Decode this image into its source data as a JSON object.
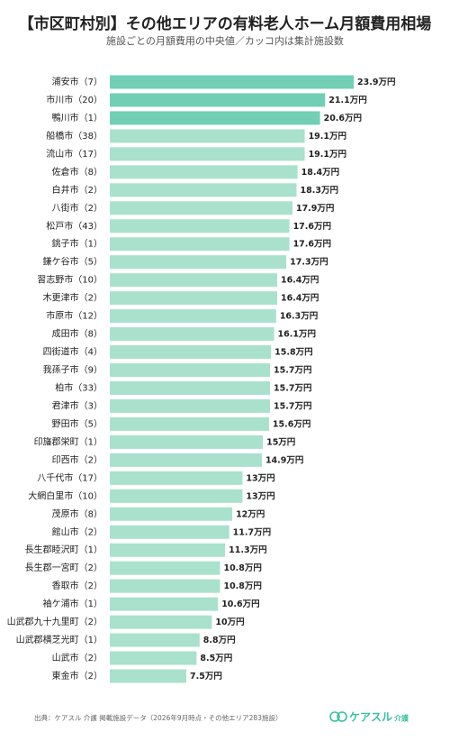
{
  "chart_data": {
    "type": "bar",
    "orientation": "horizontal",
    "title": "【市区町村別】その他エリアの有料老人ホーム月額費用相場",
    "subtitle": "施設ごとの月額費用の中央値／カッコ内は集計施設数",
    "categories": [
      "浦安市（7）",
      "市川市（20）",
      "鴨川市（1）",
      "船橋市（38）",
      "流山市（17）",
      "佐倉市（8）",
      "白井市（2）",
      "八街市（2）",
      "松戸市（43）",
      "銚子市（1）",
      "鎌ケ谷市（5）",
      "習志野市（10）",
      "木更津市（2）",
      "市原市（12）",
      "成田市（8）",
      "四街道市（4）",
      "我孫子市（9）",
      "柏市（33）",
      "君津市（3）",
      "野田市（5）",
      "印旛郡栄町（1）",
      "印西市（2）",
      "八千代市（17）",
      "大網白里市（10）",
      "茂原市（8）",
      "館山市（2）",
      "長生郡睦沢町（1）",
      "長生郡一宮町（2）",
      "香取市（2）",
      "袖ケ浦市（1）",
      "山武郡九十九里町（2）",
      "山武郡横芝光町（1）",
      "山武市（2）",
      "東金市（2）"
    ],
    "values": [
      23.9,
      21.1,
      20.6,
      19.1,
      19.1,
      18.4,
      18.3,
      17.9,
      17.6,
      17.6,
      17.3,
      16.4,
      16.4,
      16.3,
      16.1,
      15.8,
      15.7,
      15.7,
      15.7,
      15.6,
      15,
      14.9,
      13,
      13,
      12,
      11.7,
      11.3,
      10.8,
      10.8,
      10.6,
      10,
      8.8,
      8.5,
      7.5
    ],
    "value_labels": [
      "23.9万円",
      "21.1万円",
      "20.6万円",
      "19.1万円",
      "19.1万円",
      "18.4万円",
      "18.3万円",
      "17.9万円",
      "17.6万円",
      "17.6万円",
      "17.3万円",
      "16.4万円",
      "16.4万円",
      "16.3万円",
      "16.1万円",
      "15.8万円",
      "15.7万円",
      "15.7万円",
      "15.7万円",
      "15.6万円",
      "15万円",
      "14.9万円",
      "13万円",
      "13万円",
      "12万円",
      "11.7万円",
      "11.3万円",
      "10.8万円",
      "10.8万円",
      "10.6万円",
      "10万円",
      "8.8万円",
      "8.5万円",
      "7.5万円"
    ],
    "colors": [
      "#72cfb5",
      "#72cfb5",
      "#72cfb5",
      "#a9e1cd",
      "#a9e1cd",
      "#a9e1cd",
      "#a9e1cd",
      "#a9e1cd",
      "#a9e1cd",
      "#a9e1cd",
      "#a9e1cd",
      "#a9e1cd",
      "#a9e1cd",
      "#a9e1cd",
      "#a9e1cd",
      "#a9e1cd",
      "#a9e1cd",
      "#a9e1cd",
      "#a9e1cd",
      "#a9e1cd",
      "#a9e1cd",
      "#a9e1cd",
      "#a9e1cd",
      "#a9e1cd",
      "#a9e1cd",
      "#a9e1cd",
      "#a9e1cd",
      "#a9e1cd",
      "#a9e1cd",
      "#a9e1cd",
      "#a9e1cd",
      "#a9e1cd",
      "#a9e1cd",
      "#a9e1cd"
    ],
    "source": "出典：ケアスル 介護 掲載施設データ（2026年9月時点・その他エリア283施設）",
    "logo": {
      "name": "ケアスル",
      "sub": "介護"
    }
  }
}
